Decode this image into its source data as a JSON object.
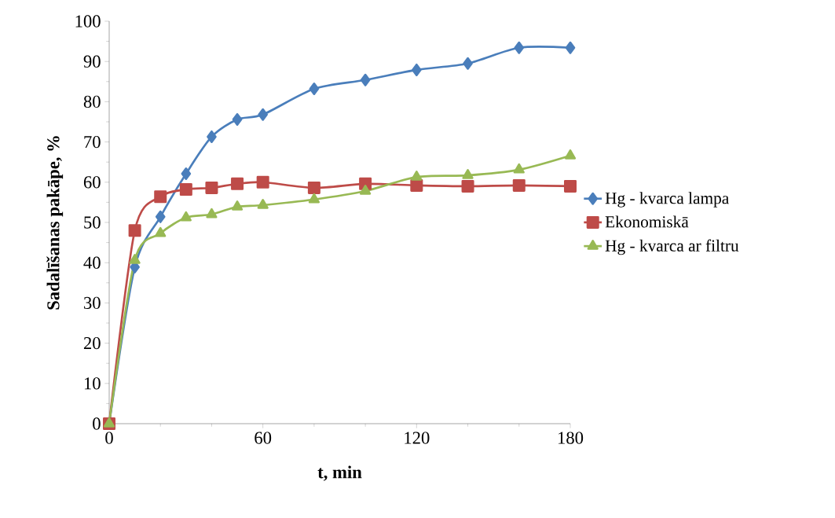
{
  "chart_data": {
    "type": "line",
    "xlabel": "t, min",
    "ylabel": "Sadalīšanas pakāpe, %",
    "x": [
      0,
      10,
      20,
      30,
      40,
      50,
      60,
      80,
      100,
      120,
      140,
      160,
      180
    ],
    "series": [
      {
        "name": "Hg - kvarca lampa",
        "color": "#4a7ebb",
        "marker": "diamond",
        "values": [
          0,
          38.9,
          51.4,
          62.1,
          71.3,
          75.6,
          76.8,
          83.2,
          85.4,
          87.9,
          89.5,
          93.4,
          93.4
        ]
      },
      {
        "name": "Ekonomiskā",
        "color": "#be4b48",
        "marker": "square",
        "values": [
          0,
          48.0,
          56.4,
          58.2,
          58.6,
          59.6,
          60.0,
          58.6,
          59.6,
          59.2,
          59.0,
          59.2,
          59.0
        ]
      },
      {
        "name": "Hg - kvarca ar filtru",
        "color": "#98b954",
        "marker": "triangle",
        "values": [
          0,
          40.6,
          47.3,
          51.2,
          52.0,
          53.9,
          54.3,
          55.7,
          57.8,
          61.3,
          61.7,
          63.1,
          66.6
        ]
      }
    ],
    "xlim": [
      0,
      180
    ],
    "xticks": [
      0,
      60,
      120,
      180
    ],
    "ylim": [
      0,
      100
    ],
    "yticks": [
      0,
      10,
      20,
      30,
      40,
      50,
      60,
      70,
      80,
      90,
      100
    ],
    "grid": false,
    "legend": "right"
  }
}
